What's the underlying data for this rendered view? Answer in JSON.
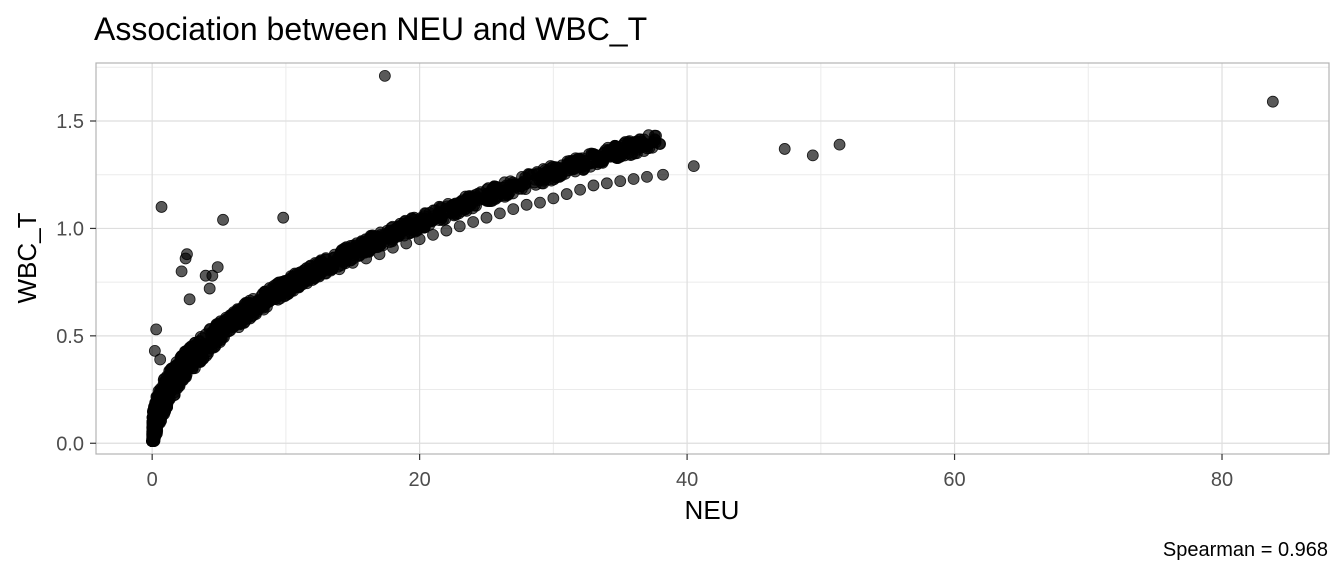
{
  "chart_data": {
    "type": "scatter",
    "title": "Association between NEU and WBC_T",
    "xlabel": "NEU",
    "ylabel": "WBC_T",
    "caption": "Spearman = 0.968",
    "xlim": [
      -4.2,
      88
    ],
    "ylim": [
      -0.05,
      1.77
    ],
    "x_ticks": [
      0,
      20,
      40,
      60,
      80
    ],
    "y_ticks": [
      0.0,
      0.5,
      1.0,
      1.5
    ],
    "x_tick_labels": [
      "0",
      "20",
      "40",
      "60",
      "80"
    ],
    "y_tick_labels": [
      "0.0",
      "0.5",
      "1.0",
      "1.5"
    ],
    "grid": true,
    "legend": "none",
    "point_color": "#000000",
    "point_opacity": 0.65,
    "trend": {
      "description": "dense cloud following WBC_T ≈ 0.23·NEU^0.5 approximately",
      "x_range_dense": [
        0,
        38
      ]
    },
    "points": [
      [
        0.05,
        0.02
      ],
      [
        0.1,
        0.03
      ],
      [
        0.15,
        0.05
      ],
      [
        0.2,
        0.07
      ],
      [
        0.3,
        0.08
      ],
      [
        0.4,
        0.1
      ],
      [
        0.5,
        0.12
      ],
      [
        0.6,
        0.14
      ],
      [
        0.7,
        0.15
      ],
      [
        0.8,
        0.17
      ],
      [
        0.9,
        0.18
      ],
      [
        1.0,
        0.2
      ],
      [
        1.2,
        0.22
      ],
      [
        1.4,
        0.24
      ],
      [
        1.6,
        0.26
      ],
      [
        1.8,
        0.28
      ],
      [
        2.0,
        0.3
      ],
      [
        2.2,
        0.32
      ],
      [
        2.5,
        0.34
      ],
      [
        2.8,
        0.36
      ],
      [
        3.0,
        0.38
      ],
      [
        3.3,
        0.4
      ],
      [
        3.6,
        0.42
      ],
      [
        4.0,
        0.44
      ],
      [
        4.4,
        0.46
      ],
      [
        4.8,
        0.48
      ],
      [
        5.2,
        0.5
      ],
      [
        5.6,
        0.52
      ],
      [
        6.0,
        0.55
      ],
      [
        6.5,
        0.57
      ],
      [
        7.0,
        0.59
      ],
      [
        7.5,
        0.61
      ],
      [
        8.0,
        0.63
      ],
      [
        8.5,
        0.65
      ],
      [
        9.0,
        0.67
      ],
      [
        9.5,
        0.69
      ],
      [
        10.0,
        0.71
      ],
      [
        11.0,
        0.73
      ],
      [
        12.0,
        0.76
      ],
      [
        13.0,
        0.79
      ],
      [
        14.0,
        0.81
      ],
      [
        15.0,
        0.84
      ],
      [
        16.0,
        0.86
      ],
      [
        17.0,
        0.88
      ],
      [
        18.0,
        0.91
      ],
      [
        19.0,
        0.93
      ],
      [
        20.0,
        0.95
      ],
      [
        21.0,
        0.97
      ],
      [
        22.0,
        0.99
      ],
      [
        23.0,
        1.01
      ],
      [
        24.0,
        1.03
      ],
      [
        25.0,
        1.05
      ],
      [
        26.0,
        1.07
      ],
      [
        27.0,
        1.09
      ],
      [
        28.0,
        1.11
      ],
      [
        29.0,
        1.12
      ],
      [
        30.0,
        1.14
      ],
      [
        31.0,
        1.16
      ],
      [
        32.0,
        1.18
      ],
      [
        33.0,
        1.2
      ],
      [
        34.0,
        1.21
      ],
      [
        35.0,
        1.22
      ],
      [
        36.0,
        1.23
      ],
      [
        37.0,
        1.24
      ],
      [
        38.2,
        1.25
      ],
      [
        0.3,
        0.53
      ],
      [
        0.2,
        0.43
      ],
      [
        0.6,
        0.39
      ],
      [
        0.7,
        1.1
      ],
      [
        5.3,
        1.04
      ],
      [
        9.8,
        1.05
      ],
      [
        17.4,
        1.71
      ],
      [
        2.6,
        0.88
      ],
      [
        2.5,
        0.86
      ],
      [
        2.2,
        0.8
      ],
      [
        4.0,
        0.78
      ],
      [
        4.5,
        0.78
      ],
      [
        4.9,
        0.82
      ],
      [
        2.8,
        0.67
      ],
      [
        4.3,
        0.72
      ],
      [
        40.5,
        1.29
      ],
      [
        47.3,
        1.37
      ],
      [
        49.4,
        1.34
      ],
      [
        51.4,
        1.39
      ],
      [
        83.8,
        1.59
      ]
    ]
  }
}
